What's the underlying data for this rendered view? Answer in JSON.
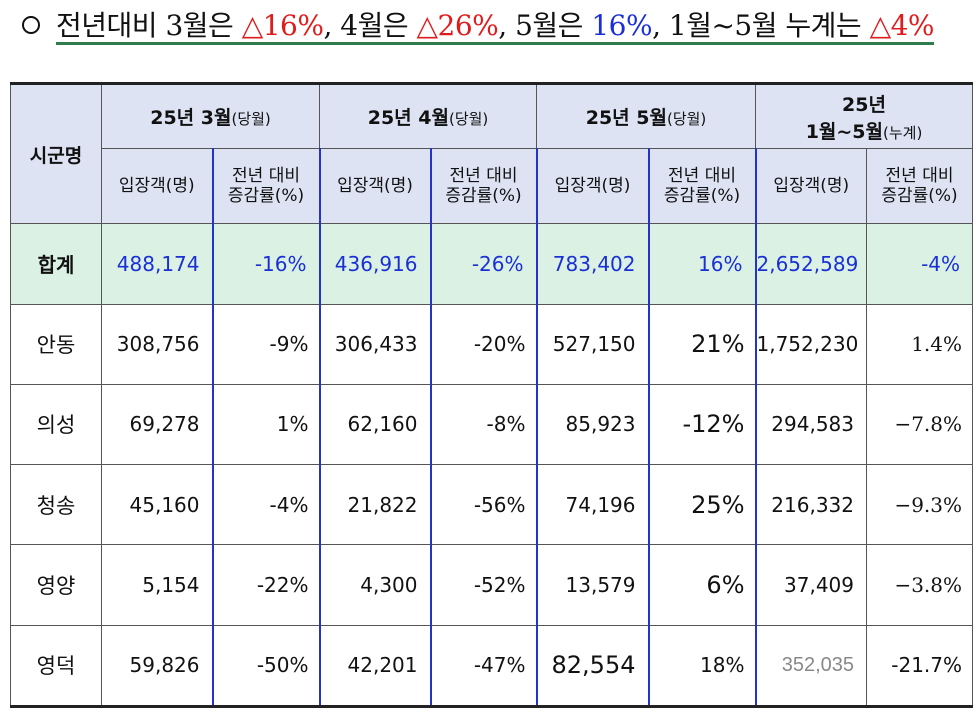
{
  "headline": {
    "part1": "전년대비 3월은 ",
    "mar_change": "△16%",
    "part2": ", 4월은 ",
    "apr_change": "△26%",
    "part3": ", 5월은 ",
    "may_change": "16%",
    "part4": ", 1월~5월 누계는 ",
    "cum_change": "△4%"
  },
  "table": {
    "region_header": "시군명",
    "groups": [
      {
        "title": "25년 3월",
        "note": "(당월)"
      },
      {
        "title": "25년 4월",
        "note": "(당월)"
      },
      {
        "title": "25년 5월",
        "note": "(당월)"
      },
      {
        "title_line1": "25년",
        "title": "1월~5월",
        "note": "(누계)"
      }
    ],
    "col_visitors": "입장객(명)",
    "col_change_line1": "전년 대비",
    "col_change_line2": "증감률(%)",
    "rows": [
      {
        "region": "합계",
        "mar_v": "488,174",
        "mar_p": "-16%",
        "apr_v": "436,916",
        "apr_p": "-26%",
        "may_v": "783,402",
        "may_p": "16%",
        "cum_v": "2,652,589",
        "cum_p": "-4%"
      },
      {
        "region": "안동",
        "mar_v": "308,756",
        "mar_p": "-9%",
        "apr_v": "306,433",
        "apr_p": "-20%",
        "may_v": "527,150",
        "may_p": "21%",
        "cum_v": "1,752,230",
        "cum_p": "1.4%"
      },
      {
        "region": "의성",
        "mar_v": "69,278",
        "mar_p": "1%",
        "apr_v": "62,160",
        "apr_p": "-8%",
        "may_v": "85,923",
        "may_p": "-12%",
        "cum_v": "294,583",
        "cum_p": "−7.8%"
      },
      {
        "region": "청송",
        "mar_v": "45,160",
        "mar_p": "-4%",
        "apr_v": "21,822",
        "apr_p": "-56%",
        "may_v": "74,196",
        "may_p": "25%",
        "cum_v": "216,332",
        "cum_p": "−9.3%"
      },
      {
        "region": "영양",
        "mar_v": "5,154",
        "mar_p": "-22%",
        "apr_v": "4,300",
        "apr_p": "-52%",
        "may_v": "13,579",
        "may_p": "6%",
        "cum_v": "37,409",
        "cum_p": "−3.8%"
      },
      {
        "region": "영덕",
        "mar_v": "59,826",
        "mar_p": "-50%",
        "apr_v": "42,201",
        "apr_p": "-47%",
        "may_v": "82,554",
        "may_p": "18%",
        "cum_v": "352,035",
        "cum_p": "-21.7%"
      }
    ]
  }
}
